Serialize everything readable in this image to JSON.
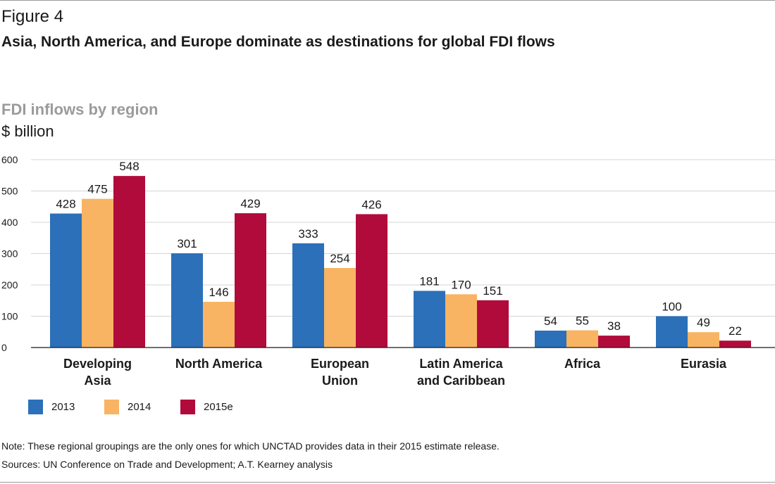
{
  "figure_label": "Figure 4",
  "figure_title": "Asia, North America, and Europe dominate as destinations for global FDI flows",
  "colors": {
    "2013": "#2b70b9",
    "2014": "#f8b462",
    "2015e": "#b10b3b",
    "grid": "#d4d4d4",
    "axis": "#1a1a1a"
  },
  "chart_data": {
    "type": "bar",
    "title": "FDI inflows by region",
    "ylabel": "$ billion",
    "xlabel": "",
    "ylim": [
      0,
      600
    ],
    "yticks": [
      0,
      100,
      200,
      300,
      400,
      500,
      600
    ],
    "grid": true,
    "legend_position": "bottom-left",
    "categories": [
      [
        "Developing",
        "Asia"
      ],
      [
        "North America"
      ],
      [
        "European",
        "Union"
      ],
      [
        "Latin America",
        "and Caribbean"
      ],
      [
        "Africa"
      ],
      [
        "Eurasia"
      ]
    ],
    "series": [
      {
        "name": "2013",
        "values": [
          428,
          301,
          333,
          181,
          54,
          100
        ]
      },
      {
        "name": "2014",
        "values": [
          475,
          146,
          254,
          170,
          55,
          49
        ]
      },
      {
        "name": "2015e",
        "values": [
          548,
          429,
          426,
          151,
          38,
          22
        ]
      }
    ]
  },
  "note": "Note: These regional groupings are the only ones for which UNCTAD provides data in their 2015 estimate release.",
  "sources": "Sources: UN Conference on Trade and Development; A.T. Kearney analysis"
}
